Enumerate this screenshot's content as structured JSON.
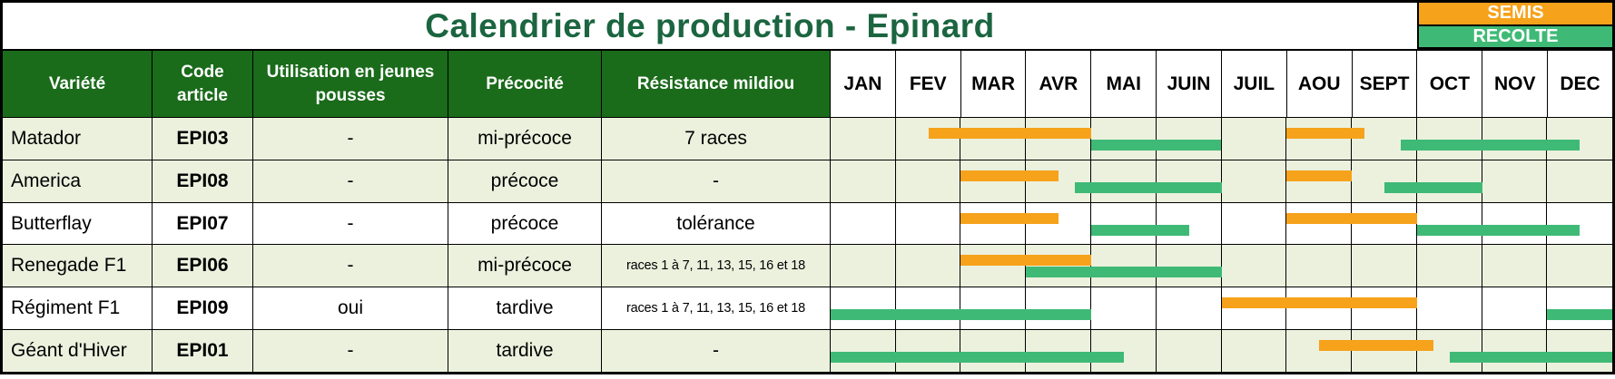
{
  "title": "Calendrier de production - Epinard",
  "legend": {
    "semis_label": "SEMIS",
    "recolte_label": "RECOLTE"
  },
  "colors": {
    "semis": "#f6a21b",
    "recolte": "#3fba76",
    "header_bg": "#1a6b1a",
    "title_text": "#1b6540",
    "row_shaded_bg": "#ecf1de",
    "row_plain_bg": "#ffffff",
    "grid_line": "#000000"
  },
  "columns": [
    "Variété",
    "Code article",
    "Utilisation en jeunes pousses",
    "Précocité",
    "Résistance mildiou"
  ],
  "chart_data": {
    "type": "gantt",
    "title": "Calendrier de production - Epinard",
    "months": [
      "JAN",
      "FEV",
      "MAR",
      "AVR",
      "MAI",
      "JUIN",
      "JUIL",
      "AOU",
      "SEPT",
      "OCT",
      "NOV",
      "DEC"
    ],
    "x_unit": "month index, 0 = start of JAN, 12 = end of DEC",
    "series_legend": [
      {
        "name": "SEMIS",
        "color": "#f6a21b"
      },
      {
        "name": "RECOLTE",
        "color": "#3fba76"
      }
    ],
    "rows": [
      {
        "variete": "Matador",
        "code_article": "EPI03",
        "jeunes_pousses": "-",
        "precocite": "mi-précoce",
        "mildiou": "7 races",
        "mildiou_small": false,
        "shaded": true,
        "semis": [
          [
            1.5,
            4.0
          ],
          [
            7.0,
            8.2
          ]
        ],
        "recolte": [
          [
            4.0,
            6.0
          ],
          [
            8.75,
            11.5
          ]
        ]
      },
      {
        "variete": "America",
        "code_article": "EPI08",
        "jeunes_pousses": "-",
        "precocite": "précoce",
        "mildiou": "-",
        "mildiou_small": false,
        "shaded": true,
        "semis": [
          [
            2.0,
            3.5
          ],
          [
            7.0,
            8.0
          ]
        ],
        "recolte": [
          [
            3.75,
            6.0
          ],
          [
            8.5,
            10.0
          ]
        ]
      },
      {
        "variete": "Butterflay",
        "code_article": "EPI07",
        "jeunes_pousses": "-",
        "precocite": "précoce",
        "mildiou": "tolérance",
        "mildiou_small": false,
        "shaded": false,
        "semis": [
          [
            2.0,
            3.5
          ],
          [
            7.0,
            9.0
          ]
        ],
        "recolte": [
          [
            4.0,
            5.5
          ],
          [
            9.0,
            11.5
          ]
        ]
      },
      {
        "variete": "Renegade F1",
        "code_article": "EPI06",
        "jeunes_pousses": "-",
        "precocite": "mi-précoce",
        "mildiou": "races 1 à 7, 11, 13, 15, 16 et 18",
        "mildiou_small": true,
        "shaded": true,
        "semis": [
          [
            2.0,
            4.0
          ]
        ],
        "recolte": [
          [
            3.0,
            6.0
          ]
        ]
      },
      {
        "variete": "Régiment F1",
        "code_article": "EPI09",
        "jeunes_pousses": "oui",
        "precocite": "tardive",
        "mildiou": "races 1 à 7, 11, 13, 15, 16 et 18",
        "mildiou_small": true,
        "shaded": false,
        "semis": [
          [
            6.0,
            9.0
          ]
        ],
        "recolte": [
          [
            0.0,
            4.0
          ],
          [
            11.0,
            12.0
          ]
        ]
      },
      {
        "variete": "Géant d'Hiver",
        "code_article": "EPI01",
        "jeunes_pousses": "-",
        "precocite": "tardive",
        "mildiou": "-",
        "mildiou_small": false,
        "shaded": true,
        "semis": [
          [
            7.5,
            9.25
          ]
        ],
        "recolte": [
          [
            0.0,
            4.5
          ],
          [
            9.5,
            12.0
          ]
        ]
      }
    ]
  }
}
